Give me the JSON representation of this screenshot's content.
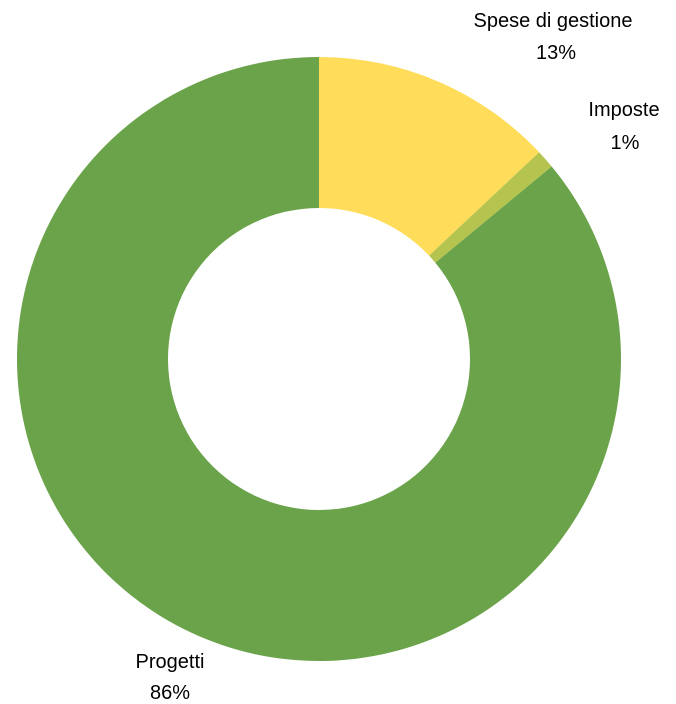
{
  "chart_data": {
    "type": "pie",
    "variant": "donut",
    "categories": [
      "Spese di gestione",
      "Imposte",
      "Progetti"
    ],
    "values": [
      13,
      1,
      86
    ],
    "value_labels": [
      "13%",
      "1%",
      "86%"
    ],
    "colors": [
      "#FFDC5A",
      "#B5C34F",
      "#6BA34A"
    ],
    "start": "12 o'clock",
    "direction": "clockwise",
    "legend": "none"
  }
}
